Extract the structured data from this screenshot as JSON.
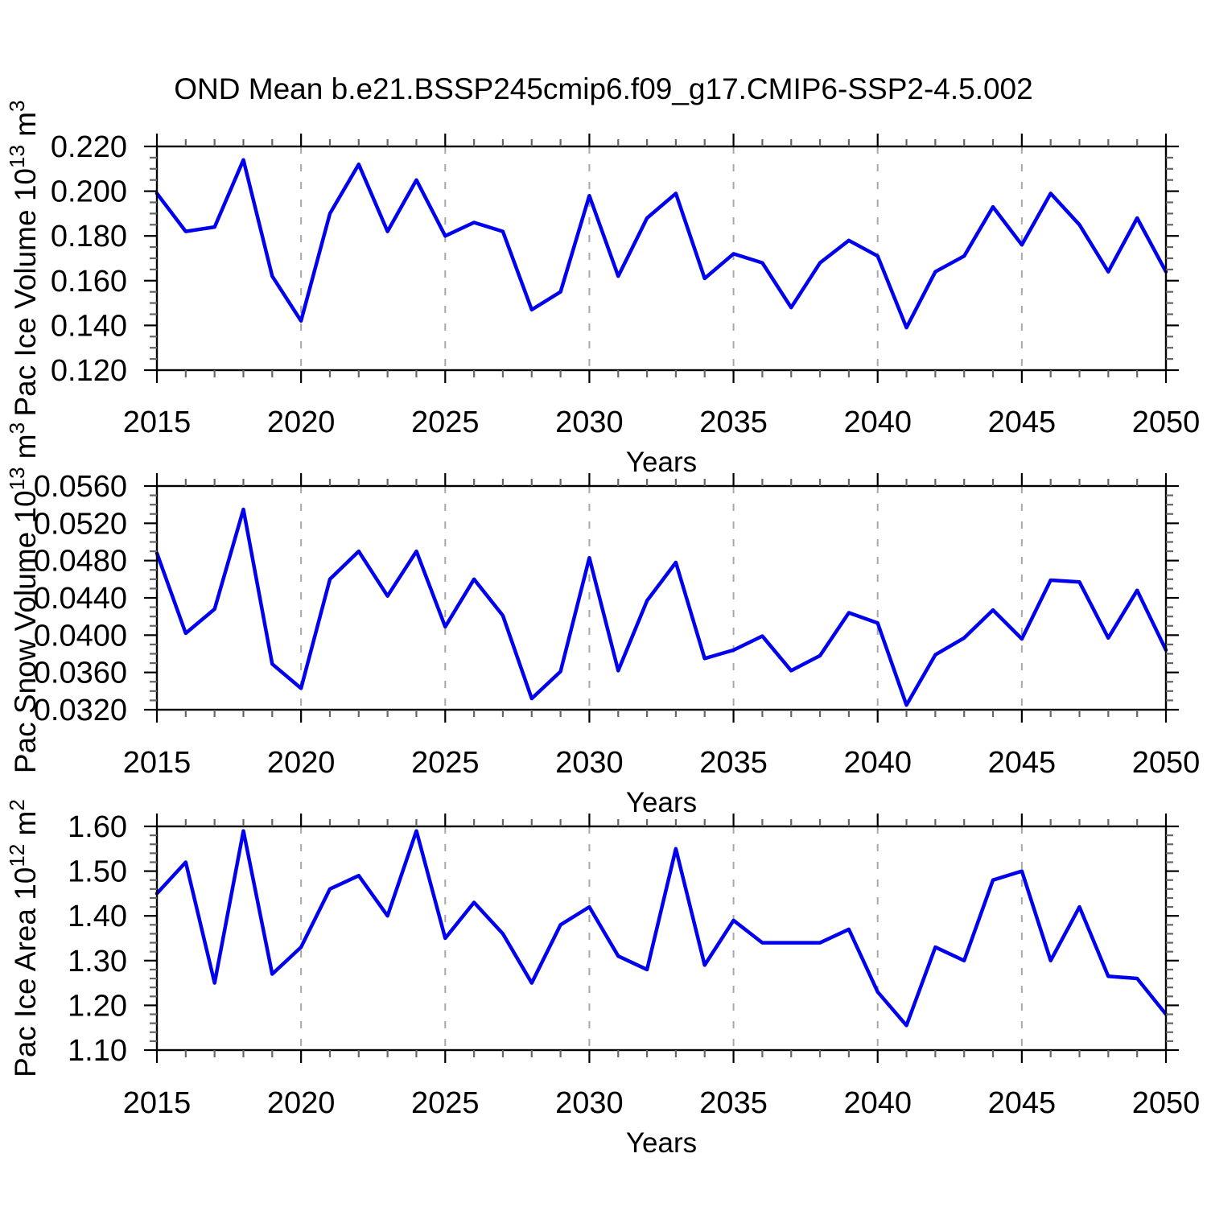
{
  "title": "OND Mean b.e21.BSSP245cmip6.f09_g17.CMIP6-SSP2-4.5.002",
  "line_color": "#0000ee",
  "grid_color": "#a8a8a8",
  "x_axis": {
    "label": "Years",
    "tick_labels": [
      "2015",
      "2020",
      "2025",
      "2030",
      "2035",
      "2040",
      "2045",
      "2050"
    ],
    "tick_years": [
      2015,
      2020,
      2025,
      2030,
      2035,
      2040,
      2045,
      2050
    ],
    "minor_step_years": 1,
    "range": [
      2015,
      2050
    ],
    "dashed_grid_years": [
      2020,
      2025,
      2030,
      2035,
      2040,
      2045
    ]
  },
  "chart_data": [
    {
      "type": "line",
      "id": "pac-ice-volume",
      "ylabel_segments": [
        {
          "text": "Pac Ice Volume 10",
          "sup": false
        },
        {
          "text": "13",
          "sup": true
        },
        {
          "text": " m",
          "sup": false
        },
        {
          "text": "3",
          "sup": true
        }
      ],
      "ylabel_plain": "Pac Ice Volume 10^13 m^3",
      "ylim": [
        0.12,
        0.22
      ],
      "ytick_labels": [
        "0.120",
        "0.140",
        "0.160",
        "0.180",
        "0.200",
        "0.220"
      ],
      "ytick_values": [
        0.12,
        0.14,
        0.16,
        0.18,
        0.2,
        0.22
      ],
      "y_minor_step": 0.005,
      "x": [
        2015,
        2016,
        2017,
        2018,
        2019,
        2020,
        2021,
        2022,
        2023,
        2024,
        2025,
        2026,
        2027,
        2028,
        2029,
        2030,
        2031,
        2032,
        2033,
        2034,
        2035,
        2036,
        2037,
        2038,
        2039,
        2040,
        2041,
        2042,
        2043,
        2044,
        2045,
        2046,
        2047,
        2048,
        2049,
        2050
      ],
      "values": [
        0.199,
        0.182,
        0.184,
        0.214,
        0.162,
        0.142,
        0.19,
        0.212,
        0.182,
        0.205,
        0.18,
        0.186,
        0.182,
        0.147,
        0.155,
        0.198,
        0.162,
        0.188,
        0.199,
        0.161,
        0.172,
        0.168,
        0.148,
        0.168,
        0.178,
        0.171,
        0.139,
        0.164,
        0.171,
        0.193,
        0.176,
        0.199,
        0.185,
        0.164,
        0.188,
        0.164
      ]
    },
    {
      "type": "line",
      "id": "pac-snow-volume",
      "ylabel_segments": [
        {
          "text": "Pac Snow Volume 10",
          "sup": false
        },
        {
          "text": "13",
          "sup": true
        },
        {
          "text": " m",
          "sup": false
        },
        {
          "text": "3",
          "sup": true
        }
      ],
      "ylabel_plain": "Pac Snow Volume 10^13 m^3",
      "ylim": [
        0.032,
        0.056
      ],
      "ytick_labels": [
        "0.0320",
        "0.0360",
        "0.0400",
        "0.0440",
        "0.0480",
        "0.0520",
        "0.0560"
      ],
      "ytick_values": [
        0.032,
        0.036,
        0.04,
        0.044,
        0.048,
        0.052,
        0.056
      ],
      "y_minor_step": 0.001,
      "x": [
        2015,
        2016,
        2017,
        2018,
        2019,
        2020,
        2021,
        2022,
        2023,
        2024,
        2025,
        2026,
        2027,
        2028,
        2029,
        2030,
        2031,
        2032,
        2033,
        2034,
        2035,
        2036,
        2037,
        2038,
        2039,
        2040,
        2041,
        2042,
        2043,
        2044,
        2045,
        2046,
        2047,
        2048,
        2049,
        2050
      ],
      "values": [
        0.0488,
        0.0402,
        0.0428,
        0.0535,
        0.0369,
        0.0343,
        0.046,
        0.049,
        0.0442,
        0.049,
        0.0409,
        0.046,
        0.0421,
        0.0332,
        0.0361,
        0.0483,
        0.0362,
        0.0437,
        0.0478,
        0.0375,
        0.0384,
        0.0399,
        0.0362,
        0.0378,
        0.0424,
        0.0413,
        0.0325,
        0.0379,
        0.0397,
        0.0427,
        0.0396,
        0.0459,
        0.0457,
        0.0397,
        0.0448,
        0.0384
      ]
    },
    {
      "type": "line",
      "id": "pac-ice-area",
      "ylabel_segments": [
        {
          "text": "Pac Ice Area 10",
          "sup": false
        },
        {
          "text": "12",
          "sup": true
        },
        {
          "text": " m",
          "sup": false
        },
        {
          "text": "2",
          "sup": true
        }
      ],
      "ylabel_plain": "Pac Ice Area 10^12 m^2",
      "ylim": [
        1.1,
        1.6
      ],
      "ytick_labels": [
        "1.10",
        "1.20",
        "1.30",
        "1.40",
        "1.50",
        "1.60"
      ],
      "ytick_values": [
        1.1,
        1.2,
        1.3,
        1.4,
        1.5,
        1.6
      ],
      "y_minor_step": 0.02,
      "x": [
        2015,
        2016,
        2017,
        2018,
        2019,
        2020,
        2021,
        2022,
        2023,
        2024,
        2025,
        2026,
        2027,
        2028,
        2029,
        2030,
        2031,
        2032,
        2033,
        2034,
        2035,
        2036,
        2037,
        2038,
        2039,
        2040,
        2041,
        2042,
        2043,
        2044,
        2045,
        2046,
        2047,
        2048,
        2049,
        2050
      ],
      "values": [
        1.45,
        1.52,
        1.25,
        1.59,
        1.27,
        1.33,
        1.46,
        1.49,
        1.4,
        1.59,
        1.35,
        1.43,
        1.36,
        1.25,
        1.38,
        1.42,
        1.31,
        1.28,
        1.55,
        1.29,
        1.39,
        1.34,
        1.34,
        1.34,
        1.37,
        1.23,
        1.155,
        1.33,
        1.3,
        1.48,
        1.5,
        1.3,
        1.42,
        1.265,
        1.26,
        1.18
      ]
    }
  ]
}
